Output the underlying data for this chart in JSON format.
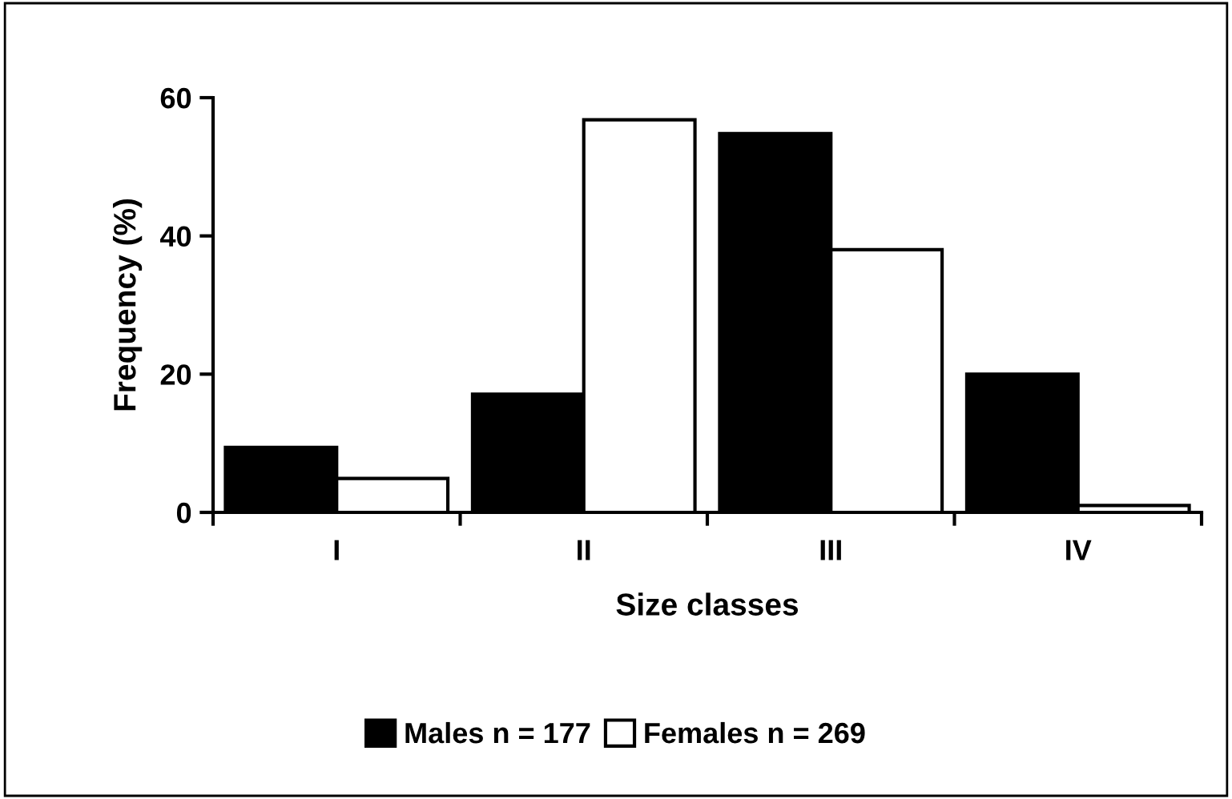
{
  "chart_data": {
    "type": "bar",
    "xlabel": "Size classes",
    "ylabel": "Frequency (%)",
    "categories": [
      "I",
      "II",
      "III",
      "IV"
    ],
    "series": [
      {
        "name": "Males n = 177",
        "color": "#000000",
        "values": [
          9.4,
          17.1,
          54.8,
          20.0
        ]
      },
      {
        "name": "Females n = 269",
        "color": "#ffffff",
        "values": [
          4.9,
          56.8,
          38.0,
          1.0
        ]
      }
    ],
    "ylim": [
      0,
      60
    ],
    "yticks": [
      0,
      20,
      40,
      60
    ],
    "grid": false,
    "legend": "bottom"
  }
}
